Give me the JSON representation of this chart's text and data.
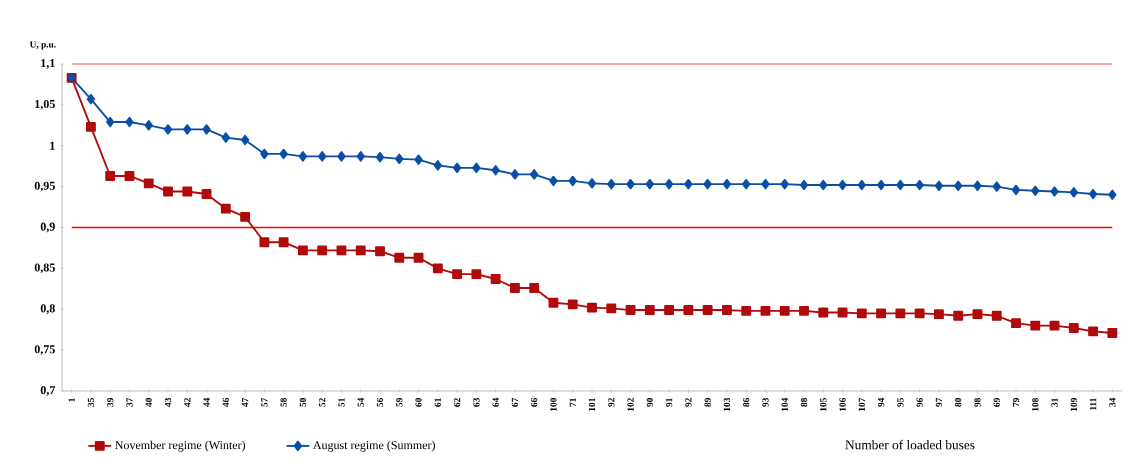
{
  "chart_data": {
    "type": "line",
    "ylabel": "U, p.u.",
    "xlabel": "Number of loaded buses",
    "categories": [
      "1",
      "35",
      "39",
      "37",
      "40",
      "43",
      "42",
      "44",
      "46",
      "47",
      "57",
      "58",
      "50",
      "52",
      "51",
      "54",
      "56",
      "59",
      "60",
      "61",
      "62",
      "63",
      "64",
      "67",
      "66",
      "100",
      "71",
      "101",
      "92",
      "102",
      "90",
      "91",
      "92",
      "89",
      "103",
      "86",
      "93",
      "104",
      "88",
      "105",
      "106",
      "107",
      "94",
      "95",
      "96",
      "97",
      "80",
      "98",
      "69",
      "79",
      "108",
      "31",
      "109",
      "111",
      "34"
    ],
    "series": [
      {
        "name": "November regime  (Winter)",
        "color": "#b00a0a",
        "marker": "square",
        "values": [
          1.083,
          1.023,
          0.963,
          0.963,
          0.954,
          0.944,
          0.944,
          0.941,
          0.923,
          0.913,
          0.882,
          0.882,
          0.872,
          0.872,
          0.872,
          0.872,
          0.871,
          0.863,
          0.863,
          0.85,
          0.843,
          0.843,
          0.837,
          0.826,
          0.826,
          0.808,
          0.806,
          0.802,
          0.801,
          0.799,
          0.799,
          0.799,
          0.799,
          0.799,
          0.799,
          0.798,
          0.798,
          0.798,
          0.798,
          0.796,
          0.796,
          0.795,
          0.795,
          0.795,
          0.795,
          0.794,
          0.792,
          0.794,
          0.792,
          0.783,
          0.78,
          0.78,
          0.777,
          0.773,
          0.771
        ]
      },
      {
        "name": "August regime  (Summer)",
        "color": "#0a4ea6",
        "marker": "diamond",
        "values": [
          1.083,
          1.057,
          1.029,
          1.029,
          1.025,
          1.02,
          1.02,
          1.02,
          1.01,
          1.007,
          0.99,
          0.99,
          0.987,
          0.987,
          0.987,
          0.987,
          0.986,
          0.984,
          0.983,
          0.976,
          0.973,
          0.973,
          0.97,
          0.965,
          0.965,
          0.957,
          0.957,
          0.954,
          0.953,
          0.953,
          0.953,
          0.953,
          0.953,
          0.953,
          0.953,
          0.953,
          0.953,
          0.953,
          0.952,
          0.952,
          0.952,
          0.952,
          0.952,
          0.952,
          0.952,
          0.951,
          0.951,
          0.951,
          0.95,
          0.946,
          0.945,
          0.944,
          0.943,
          0.941,
          0.94
        ]
      }
    ],
    "ylim": [
      0.7,
      1.1
    ],
    "yticks": [
      {
        "value": 0.7,
        "label": "0,7"
      },
      {
        "value": 0.75,
        "label": "0,75"
      },
      {
        "value": 0.8,
        "label": "0,8"
      },
      {
        "value": 0.85,
        "label": "0,85"
      },
      {
        "value": 0.9,
        "label": "0,9"
      },
      {
        "value": 0.95,
        "label": "0,95"
      },
      {
        "value": 1,
        "label": "1"
      },
      {
        "value": 1.05,
        "label": "1,05"
      },
      {
        "value": 1.1,
        "label": "1,1"
      }
    ],
    "ref_lines": [
      {
        "axis": "y",
        "value": 1.1,
        "color": "#ff8a8a"
      },
      {
        "axis": "y",
        "value": 0.9,
        "color": "#ff0000"
      }
    ],
    "legend": "bottom",
    "line_style": "solid"
  }
}
